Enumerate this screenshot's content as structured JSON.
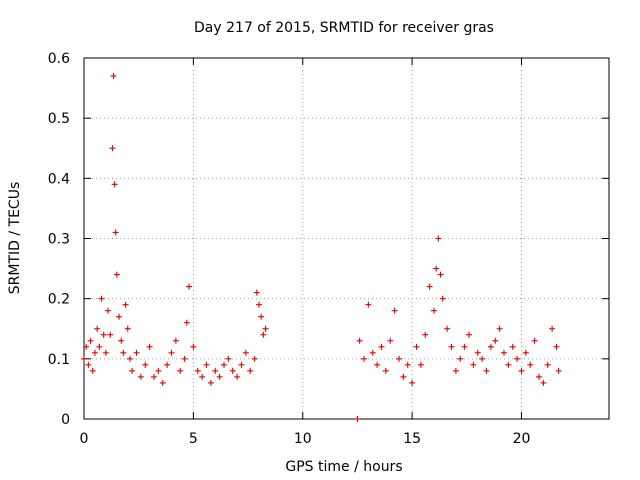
{
  "chart_data": {
    "type": "scatter",
    "title": "Day 217 of 2015, SRMTID for receiver gras",
    "xlabel": "GPS time / hours",
    "ylabel": "SRMTID / TECUs",
    "xlim": [
      0,
      24
    ],
    "ylim": [
      0,
      0.6
    ],
    "xticks": [
      0,
      5,
      10,
      15,
      20
    ],
    "xtick_labels": [
      "0",
      "5",
      "10",
      "15",
      "20"
    ],
    "yticks": [
      0,
      0.1,
      0.2,
      0.3,
      0.4,
      0.5,
      0.6
    ],
    "ytick_labels": [
      "0",
      "0.1",
      "0.2",
      "0.3",
      "0.4",
      "0.5",
      "0.6"
    ],
    "grid": true,
    "marker": "+",
    "marker_color": "#e00000",
    "series": [
      {
        "name": "SRMTID",
        "x": [
          0.0,
          0.1,
          0.2,
          0.3,
          0.4,
          0.5,
          0.6,
          0.7,
          0.8,
          0.9,
          1.0,
          1.1,
          1.2,
          1.3,
          1.35,
          1.4,
          1.45,
          1.5,
          1.6,
          1.7,
          1.8,
          1.9,
          2.0,
          2.1,
          2.2,
          2.4,
          2.6,
          2.8,
          3.0,
          3.2,
          3.4,
          3.6,
          3.8,
          4.0,
          4.2,
          4.4,
          4.6,
          4.7,
          4.8,
          5.0,
          5.2,
          5.4,
          5.6,
          5.8,
          6.0,
          6.2,
          6.4,
          6.6,
          6.8,
          7.0,
          7.2,
          7.4,
          7.6,
          7.8,
          7.9,
          8.0,
          8.1,
          8.2,
          8.3,
          12.5,
          12.6,
          12.8,
          13.0,
          13.2,
          13.4,
          13.6,
          13.8,
          14.0,
          14.2,
          14.4,
          14.6,
          14.8,
          15.0,
          15.2,
          15.4,
          15.6,
          15.8,
          16.0,
          16.1,
          16.2,
          16.3,
          16.4,
          16.6,
          16.8,
          17.0,
          17.2,
          17.4,
          17.6,
          17.8,
          18.0,
          18.2,
          18.4,
          18.6,
          18.8,
          19.0,
          19.2,
          19.4,
          19.6,
          19.8,
          20.0,
          20.2,
          20.4,
          20.6,
          20.8,
          21.0,
          21.2,
          21.4,
          21.6,
          21.7
        ],
        "y": [
          0.1,
          0.12,
          0.09,
          0.13,
          0.08,
          0.11,
          0.15,
          0.12,
          0.2,
          0.14,
          0.11,
          0.18,
          0.14,
          0.45,
          0.57,
          0.39,
          0.31,
          0.24,
          0.17,
          0.13,
          0.11,
          0.19,
          0.15,
          0.1,
          0.08,
          0.11,
          0.07,
          0.09,
          0.12,
          0.07,
          0.08,
          0.06,
          0.09,
          0.11,
          0.13,
          0.08,
          0.1,
          0.16,
          0.22,
          0.12,
          0.08,
          0.07,
          0.09,
          0.06,
          0.08,
          0.07,
          0.09,
          0.1,
          0.08,
          0.07,
          0.09,
          0.11,
          0.08,
          0.1,
          0.21,
          0.19,
          0.17,
          0.14,
          0.15,
          0.0,
          0.13,
          0.1,
          0.19,
          0.11,
          0.09,
          0.12,
          0.08,
          0.13,
          0.18,
          0.1,
          0.07,
          0.09,
          0.06,
          0.12,
          0.09,
          0.14,
          0.22,
          0.18,
          0.25,
          0.3,
          0.24,
          0.2,
          0.15,
          0.12,
          0.08,
          0.1,
          0.12,
          0.14,
          0.09,
          0.11,
          0.1,
          0.08,
          0.12,
          0.13,
          0.15,
          0.11,
          0.09,
          0.12,
          0.1,
          0.08,
          0.11,
          0.09,
          0.13,
          0.07,
          0.06,
          0.09,
          0.15,
          0.12,
          0.08
        ]
      }
    ]
  }
}
